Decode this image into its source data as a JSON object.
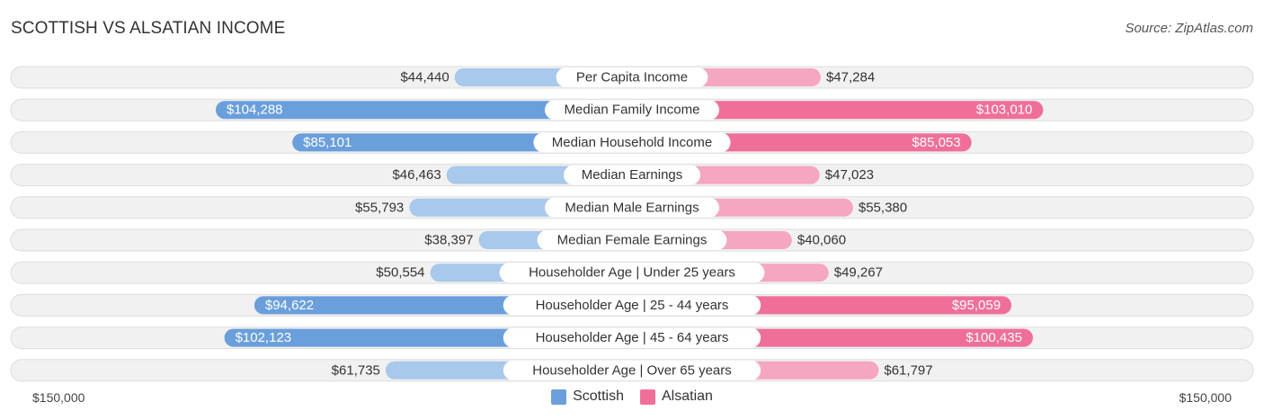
{
  "header": {
    "title": "SCOTTISH VS ALSATIAN INCOME",
    "source": "Source: ZipAtlas.com"
  },
  "axis": {
    "left_label": "$150,000",
    "right_label": "$150,000"
  },
  "colors": {
    "left_strong": "#6a9fdc",
    "left_light": "#a8c8ec",
    "right_strong": "#f06f98",
    "right_light": "#f5a6c0",
    "row_bg": "#f1f1f1",
    "row_border": "#dddddd"
  },
  "chart_data": {
    "type": "bar",
    "orientation": "horizontal-diverging",
    "title": "SCOTTISH VS ALSATIAN INCOME",
    "max_value": 150000,
    "categories": [
      "Per Capita Income",
      "Median Family Income",
      "Median Household Income",
      "Median Earnings",
      "Median Male Earnings",
      "Median Female Earnings",
      "Householder Age | Under 25 years",
      "Householder Age | 25 - 44 years",
      "Householder Age | 45 - 64 years",
      "Householder Age | Over 65 years"
    ],
    "series": [
      {
        "name": "Scottish",
        "values": [
          44440,
          104288,
          85101,
          46463,
          55793,
          38397,
          50554,
          94622,
          102123,
          61735
        ],
        "labels": [
          "$44,440",
          "$104,288",
          "$85,101",
          "$46,463",
          "$55,793",
          "$38,397",
          "$50,554",
          "$94,622",
          "$102,123",
          "$61,735"
        ]
      },
      {
        "name": "Alsatian",
        "values": [
          47284,
          103010,
          85053,
          47023,
          55380,
          40060,
          49267,
          95059,
          100435,
          61797
        ],
        "labels": [
          "$47,284",
          "$103,010",
          "$85,053",
          "$47,023",
          "$55,380",
          "$40,060",
          "$49,267",
          "$95,059",
          "$100,435",
          "$61,797"
        ]
      }
    ],
    "legend": {
      "placement": "bottom-center"
    },
    "grid": false
  }
}
